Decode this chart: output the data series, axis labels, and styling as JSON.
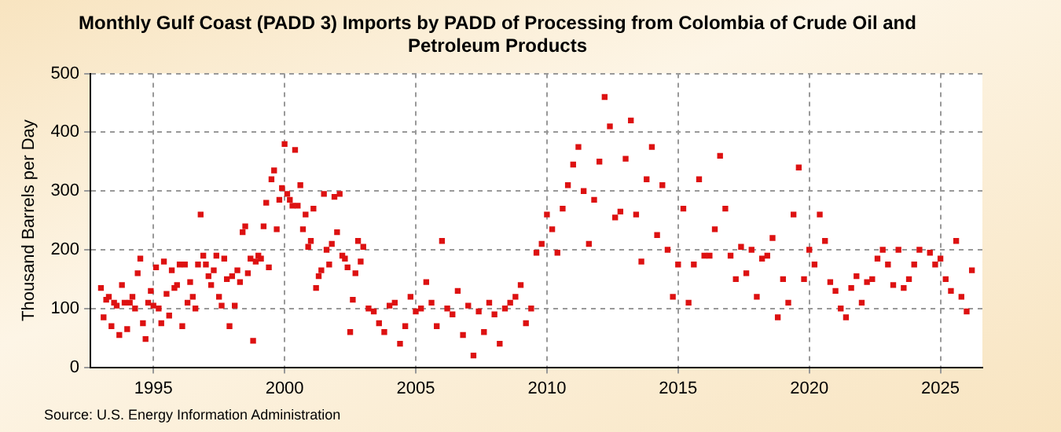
{
  "chart_data": {
    "type": "scatter",
    "title": "Monthly Gulf Coast (PADD 3) Imports by PADD of Processing from Colombia of Crude Oil and Petroleum Products",
    "ylabel": "Thousand Barrels per Day",
    "annotations": [
      "Source: U.S. Energy Information Administration"
    ],
    "x": [
      1993.0,
      1993.1,
      1993.2,
      1993.3,
      1993.4,
      1993.5,
      1993.6,
      1993.7,
      1993.8,
      1993.9,
      1994.0,
      1994.1,
      1994.2,
      1994.3,
      1994.4,
      1994.5,
      1994.6,
      1994.7,
      1994.8,
      1994.9,
      1995.0,
      1995.1,
      1995.2,
      1995.3,
      1995.4,
      1995.5,
      1995.6,
      1995.7,
      1995.8,
      1995.9,
      1996.0,
      1996.1,
      1996.2,
      1996.3,
      1996.4,
      1996.5,
      1996.6,
      1996.7,
      1996.8,
      1996.9,
      1997.0,
      1997.1,
      1997.2,
      1997.3,
      1997.4,
      1997.5,
      1997.6,
      1997.7,
      1997.8,
      1997.9,
      1998.0,
      1998.1,
      1998.2,
      1998.3,
      1998.4,
      1998.5,
      1998.6,
      1998.7,
      1998.8,
      1998.9,
      1999.0,
      1999.1,
      1999.2,
      1999.3,
      1999.4,
      1999.5,
      1999.6,
      1999.7,
      1999.8,
      1999.9,
      2000.0,
      2000.1,
      2000.2,
      2000.3,
      2000.4,
      2000.5,
      2000.6,
      2000.7,
      2000.8,
      2000.9,
      2001.0,
      2001.1,
      2001.2,
      2001.3,
      2001.4,
      2001.5,
      2001.6,
      2001.7,
      2001.8,
      2001.9,
      2002.0,
      2002.1,
      2002.2,
      2002.3,
      2002.4,
      2002.5,
      2002.6,
      2002.7,
      2002.8,
      2002.9,
      2003.0,
      2003.2,
      2003.4,
      2003.6,
      2003.8,
      2004.0,
      2004.2,
      2004.4,
      2004.6,
      2004.8,
      2005.0,
      2005.2,
      2005.4,
      2005.6,
      2005.8,
      2006.0,
      2006.2,
      2006.4,
      2006.6,
      2006.8,
      2007.0,
      2007.2,
      2007.4,
      2007.6,
      2007.8,
      2008.0,
      2008.2,
      2008.4,
      2008.6,
      2008.8,
      2009.0,
      2009.2,
      2009.4,
      2009.6,
      2009.8,
      2010.0,
      2010.2,
      2010.4,
      2010.6,
      2010.8,
      2011.0,
      2011.2,
      2011.4,
      2011.6,
      2011.8,
      2012.0,
      2012.2,
      2012.4,
      2012.6,
      2012.8,
      2013.0,
      2013.2,
      2013.4,
      2013.6,
      2013.8,
      2014.0,
      2014.2,
      2014.4,
      2014.6,
      2014.8,
      2015.0,
      2015.2,
      2015.4,
      2015.6,
      2015.8,
      2016.0,
      2016.2,
      2016.4,
      2016.6,
      2016.8,
      2017.0,
      2017.2,
      2017.4,
      2017.6,
      2017.8,
      2018.0,
      2018.2,
      2018.4,
      2018.6,
      2018.8,
      2019.0,
      2019.2,
      2019.4,
      2019.6,
      2019.8,
      2020.0,
      2020.2,
      2020.4,
      2020.6,
      2020.8,
      2021.0,
      2021.2,
      2021.4,
      2021.6,
      2021.8,
      2022.0,
      2022.2,
      2022.4,
      2022.6,
      2022.8,
      2023.0,
      2023.2,
      2023.4,
      2023.6,
      2023.8,
      2024.0,
      2024.2,
      2024.6,
      2024.8,
      2025.0,
      2025.2,
      2025.4,
      2025.6,
      2025.8,
      2026.0,
      2026.2
    ],
    "series": [
      {
        "color": "#dd1111",
        "values": [
          135,
          85,
          115,
          120,
          70,
          110,
          105,
          55,
          140,
          110,
          65,
          110,
          120,
          100,
          160,
          185,
          75,
          48,
          110,
          130,
          105,
          170,
          100,
          75,
          180,
          125,
          88,
          165,
          135,
          140,
          175,
          70,
          175,
          110,
          145,
          120,
          100,
          175,
          260,
          190,
          175,
          155,
          140,
          165,
          190,
          120,
          105,
          185,
          150,
          70,
          155,
          105,
          165,
          145,
          230,
          240,
          160,
          185,
          45,
          180,
          190,
          185,
          240,
          280,
          170,
          320,
          335,
          235,
          285,
          305,
          380,
          295,
          285,
          275,
          370,
          275,
          310,
          235,
          260,
          205,
          215,
          270,
          135,
          155,
          165,
          295,
          200,
          175,
          210,
          290,
          230,
          295,
          190,
          185,
          170,
          60,
          115,
          160,
          215,
          180,
          205,
          100,
          95,
          75,
          60,
          105,
          110,
          40,
          70,
          120,
          95,
          100,
          145,
          110,
          70,
          215,
          100,
          90,
          130,
          55,
          105,
          20,
          95,
          60,
          110,
          90,
          40,
          100,
          110,
          120,
          140,
          75,
          100,
          195,
          210,
          260,
          235,
          195,
          270,
          310,
          345,
          375,
          300,
          210,
          285,
          350,
          460,
          410,
          255,
          265,
          355,
          420,
          260,
          180,
          320,
          375,
          225,
          310,
          200,
          120,
          175,
          270,
          110,
          175,
          320,
          190,
          190,
          235,
          360,
          270,
          190,
          150,
          205,
          160,
          200,
          120,
          185,
          190,
          220,
          85,
          150,
          110,
          260,
          340,
          150,
          200,
          175,
          260,
          215,
          145,
          130,
          100,
          85,
          135,
          155,
          110,
          145,
          150,
          185,
          200,
          175,
          140,
          200,
          135,
          150,
          175,
          200,
          195,
          175,
          185,
          150,
          130,
          215,
          120,
          95,
          165
        ]
      }
    ],
    "xlim": [
      1992.6,
      2026.6
    ],
    "xticks": [
      1995,
      2000,
      2005,
      2010,
      2015,
      2020,
      2025
    ],
    "ylim": [
      0,
      500
    ],
    "yticks": [
      0,
      100,
      200,
      300,
      400,
      500
    ],
    "grid": true,
    "legend": false,
    "marker": "square"
  }
}
